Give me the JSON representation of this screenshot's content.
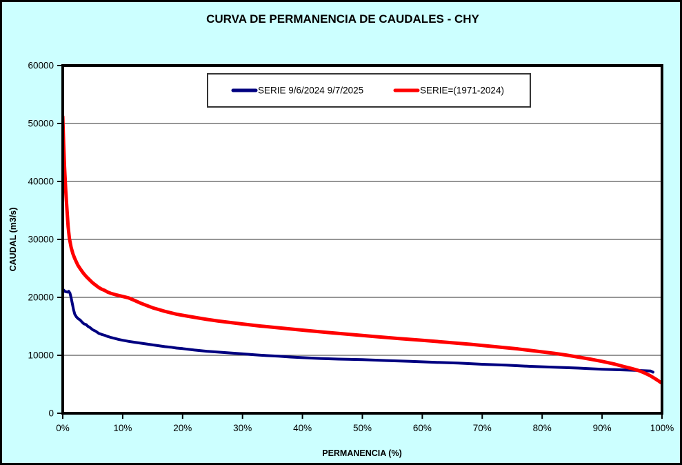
{
  "page": {
    "title": "CURVA DE PERMANENCIA DE CAUDALES - CHY"
  },
  "colors": {
    "background": "#CCFFFF",
    "plot_background": "#FFFFFF",
    "gridline": "#595959",
    "axis": "#000000",
    "series_blue": "#000080",
    "series_red": "#FF0000",
    "legend_border": "#333333"
  },
  "chart_data": {
    "type": "line",
    "title": "CURVA DE PERMANENCIA DE CAUDALES - CHY",
    "xlabel": "PERMANENCIA (%)",
    "ylabel": "CAUDAL (m3/s)",
    "xlim": [
      0,
      100
    ],
    "ylim": [
      0,
      60000
    ],
    "x_tick_labels": [
      "0%",
      "10%",
      "20%",
      "30%",
      "40%",
      "50%",
      "60%",
      "70%",
      "80%",
      "90%",
      "100%"
    ],
    "y_tick_labels": [
      "0",
      "10000",
      "20000",
      "30000",
      "40000",
      "50000",
      "60000"
    ],
    "grid": "horizontal-only",
    "legend_position": "top-center-inside",
    "series": [
      {
        "name": "SERIE 9/6/2024 9/7/2025",
        "color": "#000080",
        "x": [
          0,
          0.4,
          0.8,
          1.0,
          1.2,
          1.4,
          1.6,
          1.8,
          2.0,
          2.3,
          2.6,
          2.9,
          3.2,
          3.5,
          3.9,
          4.2,
          4.6,
          5.0,
          5.5,
          6.0,
          6.5,
          7.0,
          7.5,
          8.0,
          8.7,
          9.3,
          10,
          11,
          12,
          13,
          14,
          15,
          16,
          17,
          18,
          19,
          20,
          22,
          24,
          26,
          28,
          30,
          32,
          34,
          36,
          38,
          40,
          43,
          46,
          50,
          54,
          58,
          62,
          66,
          70,
          74,
          78,
          82,
          86,
          90,
          93,
          95,
          96.5,
          97.5,
          98.1,
          98.5
        ],
        "y": [
          21400,
          21000,
          20900,
          21050,
          20750,
          19900,
          18900,
          17900,
          17100,
          16600,
          16300,
          16100,
          15750,
          15450,
          15300,
          15000,
          14750,
          14400,
          14150,
          13800,
          13600,
          13450,
          13250,
          13100,
          12900,
          12750,
          12600,
          12400,
          12250,
          12100,
          11950,
          11800,
          11650,
          11500,
          11400,
          11250,
          11150,
          10900,
          10700,
          10550,
          10400,
          10250,
          10100,
          9950,
          9850,
          9700,
          9600,
          9450,
          9350,
          9250,
          9100,
          8950,
          8800,
          8650,
          8450,
          8300,
          8100,
          7950,
          7800,
          7600,
          7500,
          7430,
          7370,
          7320,
          7280,
          7100
        ]
      },
      {
        "name": "SERIE=(1971-2024)",
        "color": "#FF0000",
        "x": [
          0,
          0.15,
          0.3,
          0.5,
          0.7,
          0.9,
          1.1,
          1.4,
          1.7,
          2.0,
          2.5,
          3.0,
          3.5,
          4.0,
          4.5,
          5.0,
          5.5,
          6.0,
          6.5,
          7.0,
          7.5,
          8.0,
          9.0,
          10,
          11,
          12,
          13,
          14,
          15,
          16,
          17,
          18,
          19,
          20,
          22,
          24,
          26,
          28,
          30,
          33,
          36,
          40,
          44,
          48,
          52,
          56,
          60,
          64,
          68,
          72,
          76,
          80,
          82,
          84,
          86,
          88,
          90,
          92,
          93.5,
          95,
          96,
          97,
          98,
          98.8,
          99.4,
          99.8
        ],
        "y": [
          51200,
          46500,
          42500,
          38500,
          35200,
          32200,
          30200,
          28600,
          27500,
          26700,
          25600,
          24800,
          24100,
          23500,
          23000,
          22500,
          22100,
          21700,
          21400,
          21200,
          20900,
          20700,
          20400,
          20150,
          19900,
          19450,
          19000,
          18600,
          18200,
          17900,
          17600,
          17350,
          17100,
          16900,
          16550,
          16200,
          15900,
          15650,
          15400,
          15050,
          14750,
          14350,
          13950,
          13600,
          13250,
          12900,
          12600,
          12250,
          11900,
          11500,
          11100,
          10600,
          10350,
          10050,
          9700,
          9350,
          8950,
          8500,
          8100,
          7700,
          7400,
          7000,
          6500,
          6000,
          5600,
          5300
        ]
      }
    ]
  }
}
